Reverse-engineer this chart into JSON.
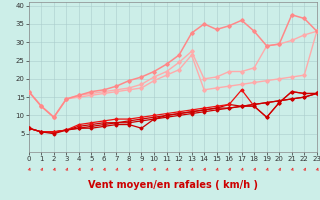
{
  "background_color": "#cceee8",
  "grid_color": "#aacccc",
  "xlim": [
    0,
    23
  ],
  "ylim": [
    0,
    41
  ],
  "yticks": [
    5,
    10,
    15,
    20,
    25,
    30,
    35,
    40
  ],
  "xticks": [
    0,
    1,
    2,
    3,
    4,
    5,
    6,
    7,
    8,
    9,
    10,
    11,
    12,
    13,
    14,
    15,
    16,
    17,
    18,
    19,
    20,
    21,
    22,
    23
  ],
  "xlabel": "Vent moyen/en rafales ( km/h )",
  "xlabel_color": "#cc0000",
  "xlabel_fontsize": 7,
  "tick_fontsize": 5,
  "series": [
    {
      "x": [
        0,
        1,
        2,
        3,
        4,
        5,
        6,
        7,
        8,
        9,
        10,
        11,
        12,
        13,
        14,
        15,
        16,
        17,
        18,
        19,
        20,
        21,
        22,
        23
      ],
      "y": [
        6.5,
        5.5,
        5.5,
        6.0,
        6.5,
        7.0,
        7.5,
        8.0,
        8.0,
        8.5,
        9.0,
        9.5,
        10.0,
        10.5,
        11.0,
        11.5,
        12.0,
        12.5,
        13.0,
        13.5,
        14.0,
        14.5,
        15.0,
        16.0
      ],
      "color": "#cc0000",
      "lw": 0.9,
      "marker": "D",
      "ms": 1.5
    },
    {
      "x": [
        0,
        1,
        2,
        3,
        4,
        5,
        6,
        7,
        8,
        9,
        10,
        11,
        12,
        13,
        14,
        15,
        16,
        17,
        18,
        19,
        20,
        21,
        22,
        23
      ],
      "y": [
        6.5,
        5.5,
        5.5,
        6.0,
        7.0,
        7.5,
        8.0,
        8.0,
        8.5,
        9.0,
        9.5,
        10.0,
        10.5,
        11.0,
        11.5,
        12.0,
        13.0,
        12.5,
        13.0,
        13.5,
        14.0,
        14.5,
        15.0,
        16.0
      ],
      "color": "#cc0000",
      "lw": 0.9,
      "marker": "D",
      "ms": 1.5
    },
    {
      "x": [
        0,
        1,
        2,
        3,
        4,
        5,
        6,
        7,
        8,
        9,
        10,
        11,
        12,
        13,
        14,
        15,
        16,
        17,
        18,
        19,
        20,
        21,
        22,
        23
      ],
      "y": [
        6.5,
        5.5,
        5.5,
        6.0,
        7.5,
        8.0,
        8.5,
        9.0,
        9.0,
        9.5,
        10.0,
        10.5,
        11.0,
        11.5,
        12.0,
        12.5,
        13.0,
        17.0,
        12.5,
        9.5,
        13.5,
        16.5,
        16.0,
        16.0
      ],
      "color": "#ee1111",
      "lw": 0.9,
      "marker": "D",
      "ms": 1.5
    },
    {
      "x": [
        0,
        1,
        2,
        3,
        4,
        5,
        6,
        7,
        8,
        9,
        10,
        11,
        12,
        13,
        14,
        15,
        16,
        17,
        18,
        19,
        20,
        21,
        22,
        23
      ],
      "y": [
        6.5,
        5.5,
        5.0,
        6.0,
        6.5,
        6.5,
        7.0,
        7.5,
        7.5,
        6.5,
        9.0,
        10.0,
        10.5,
        11.0,
        11.5,
        12.0,
        12.0,
        12.5,
        12.5,
        9.5,
        13.5,
        16.5,
        16.0,
        16.0
      ],
      "color": "#cc0000",
      "lw": 0.9,
      "marker": "D",
      "ms": 1.5
    },
    {
      "x": [
        0,
        1,
        2,
        3,
        4,
        5,
        6,
        7,
        8,
        9,
        10,
        11,
        12,
        13,
        14,
        15,
        16,
        17,
        18,
        19,
        20,
        21,
        22,
        23
      ],
      "y": [
        16.5,
        12.5,
        9.5,
        14.5,
        15.0,
        15.5,
        16.0,
        16.5,
        17.0,
        17.5,
        19.5,
        21.0,
        22.5,
        26.5,
        17.0,
        17.5,
        18.0,
        18.5,
        19.0,
        19.5,
        20.0,
        20.5,
        21.0,
        33.0
      ],
      "color": "#ffaaaa",
      "lw": 1.0,
      "marker": "D",
      "ms": 1.8
    },
    {
      "x": [
        0,
        1,
        2,
        3,
        4,
        5,
        6,
        7,
        8,
        9,
        10,
        11,
        12,
        13,
        14,
        15,
        16,
        17,
        18,
        19,
        20,
        21,
        22,
        23
      ],
      "y": [
        16.5,
        12.5,
        9.5,
        14.5,
        15.5,
        16.0,
        16.5,
        17.0,
        17.5,
        18.5,
        20.5,
        22.0,
        24.5,
        27.5,
        20.0,
        20.5,
        22.0,
        22.0,
        23.0,
        29.0,
        29.5,
        30.5,
        32.0,
        33.0
      ],
      "color": "#ffaaaa",
      "lw": 1.0,
      "marker": "D",
      "ms": 1.8
    },
    {
      "x": [
        0,
        1,
        2,
        3,
        4,
        5,
        6,
        7,
        8,
        9,
        10,
        11,
        12,
        13,
        14,
        15,
        16,
        17,
        18,
        19,
        20,
        21,
        22,
        23
      ],
      "y": [
        16.5,
        12.5,
        9.5,
        14.5,
        15.5,
        16.5,
        17.0,
        18.0,
        19.5,
        20.5,
        22.0,
        24.0,
        26.5,
        32.5,
        35.0,
        33.5,
        34.5,
        36.0,
        33.0,
        29.0,
        29.5,
        37.5,
        36.5,
        33.0
      ],
      "color": "#ff8888",
      "lw": 1.1,
      "marker": "D",
      "ms": 1.8
    }
  ]
}
